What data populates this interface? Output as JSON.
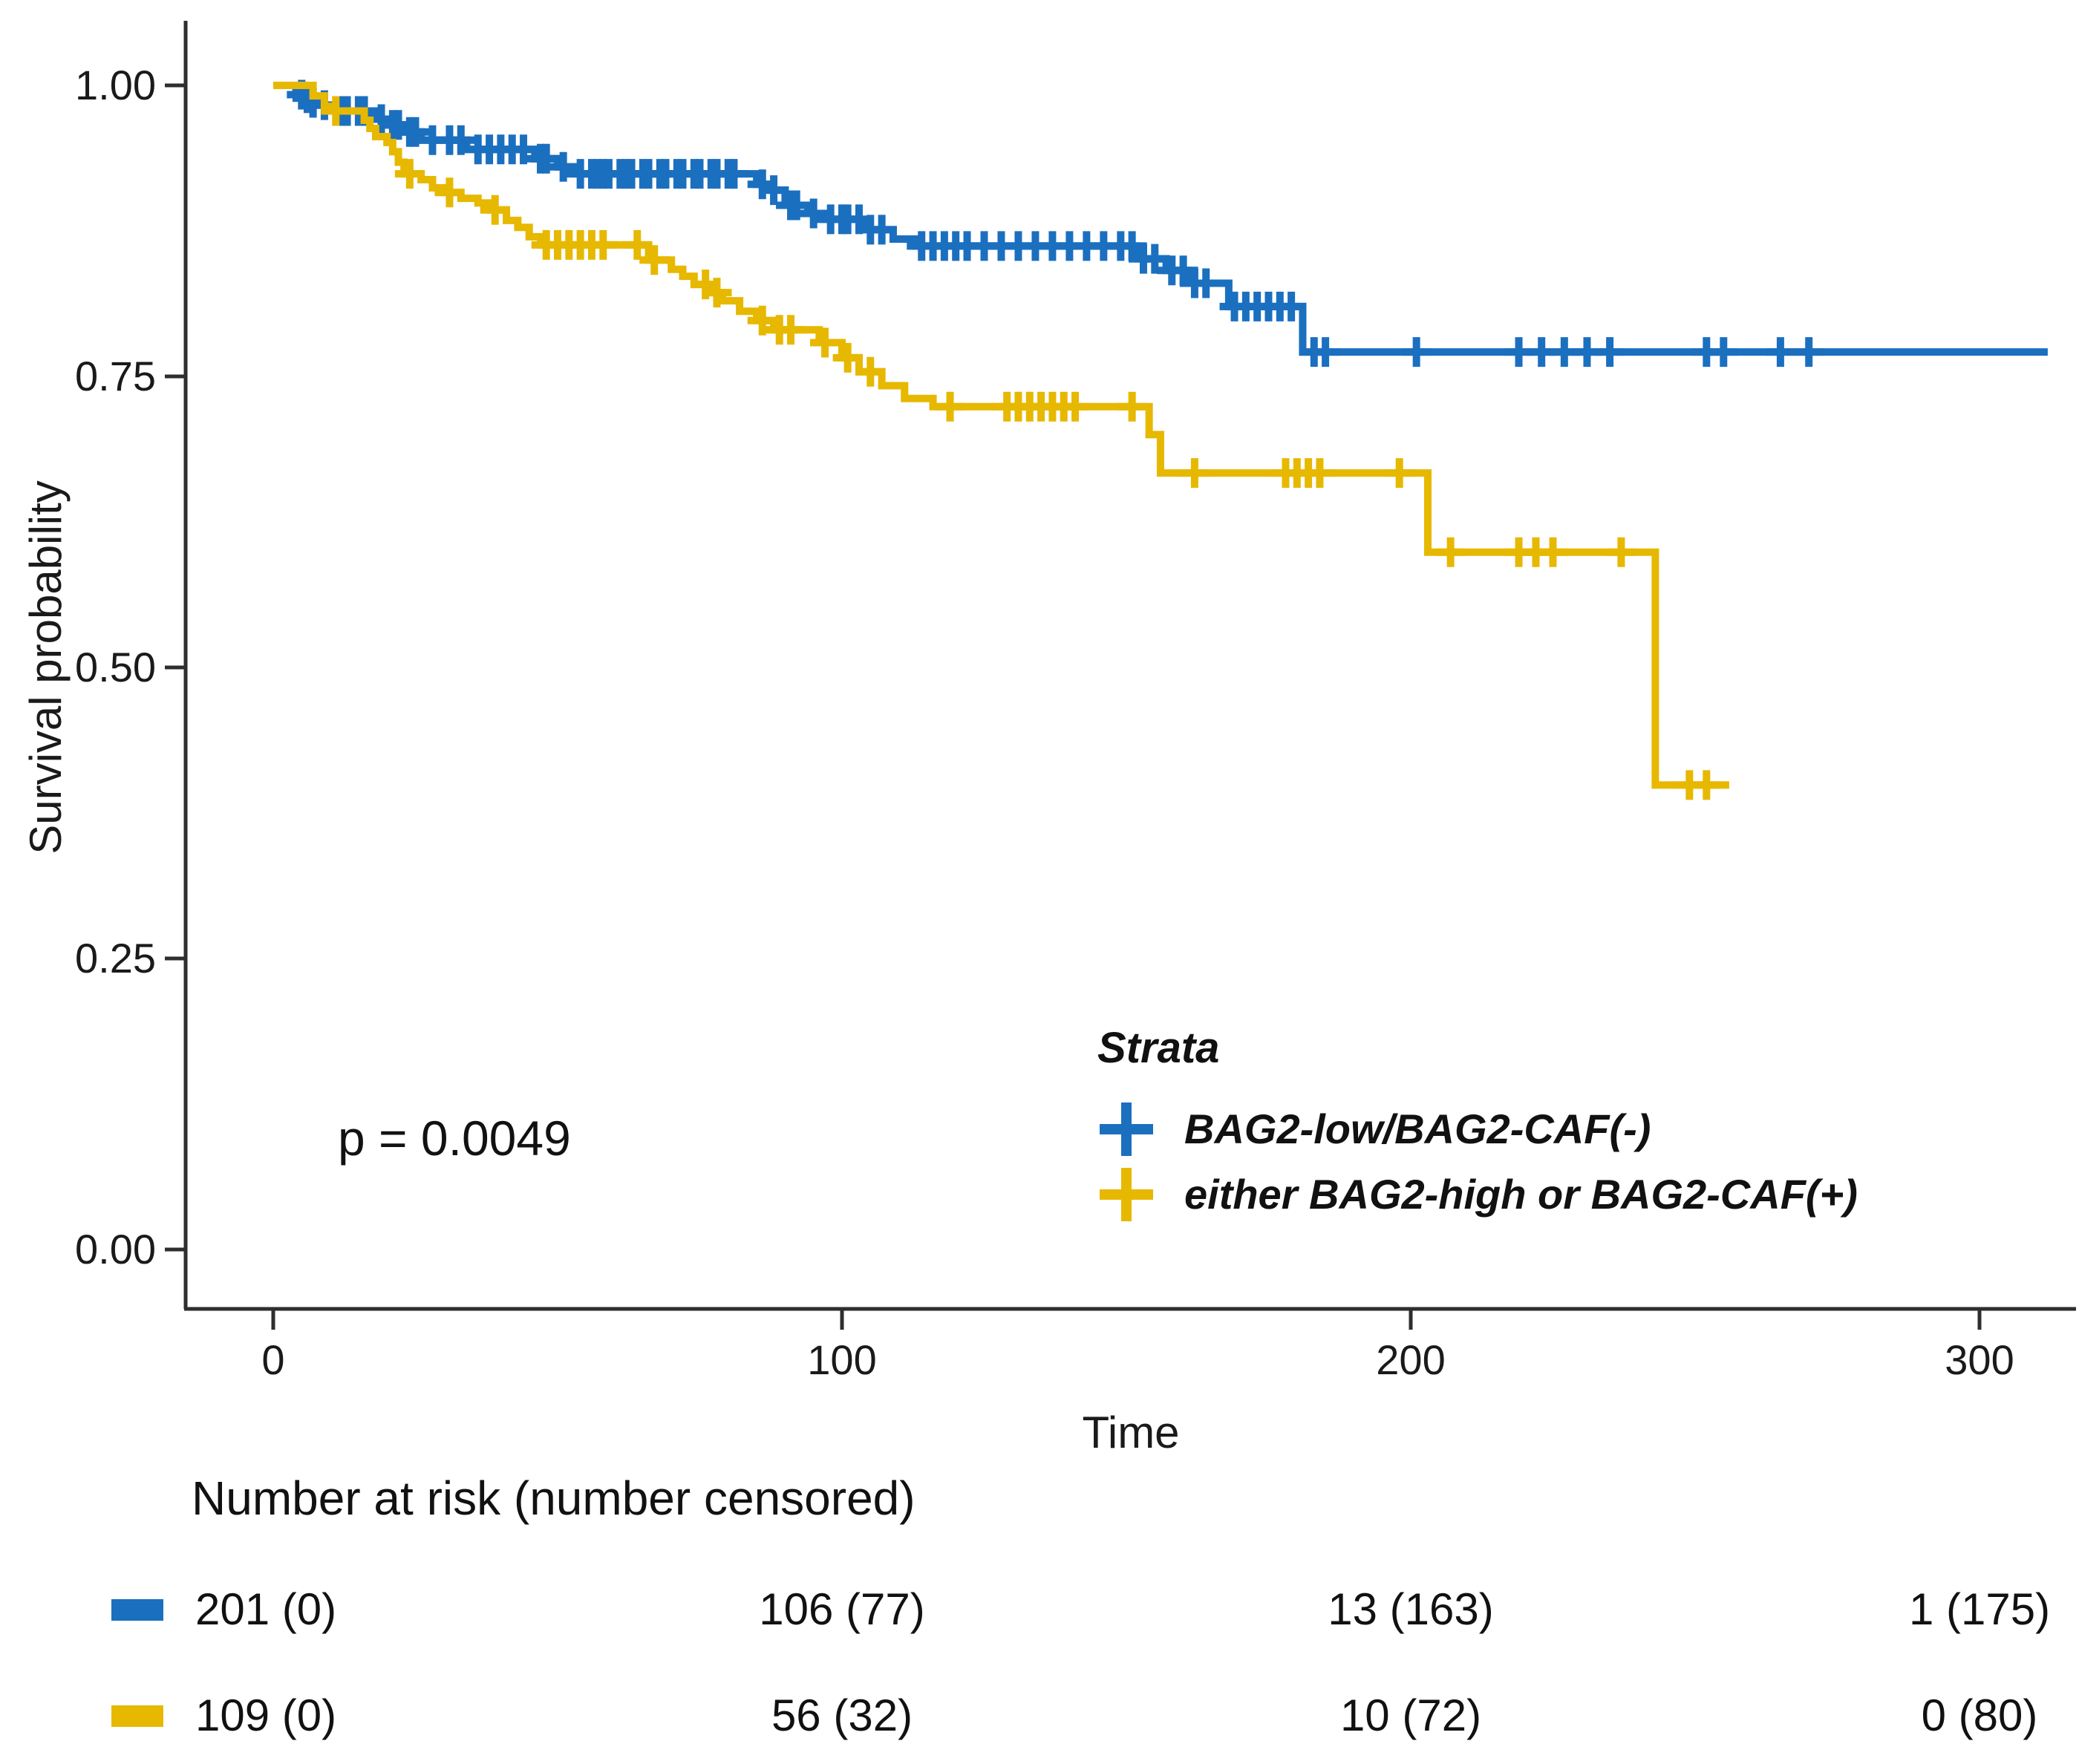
{
  "chart_data": {
    "type": "line",
    "subtype": "kaplan-meier-step",
    "title": "",
    "xlabel": "Time",
    "ylabel": "Survival probability",
    "x_ticks": [
      "0",
      "100",
      "200",
      "300"
    ],
    "x_tick_values": [
      0,
      100,
      200,
      300
    ],
    "y_ticks": [
      "1.00",
      "0.75",
      "0.50",
      "0.25",
      "0.00"
    ],
    "y_tick_values": [
      1.0,
      0.75,
      0.5,
      0.25,
      0.0
    ],
    "xlim": [
      0,
      316
    ],
    "ylim": [
      0,
      1
    ],
    "grid": false,
    "pvalue_label": "p = 0.0049",
    "legend": {
      "title": "Strata",
      "position": "inside-bottom-right"
    },
    "series": [
      {
        "name": "BAG2-low/BAG2-CAF(-)",
        "color": "#1B6FBF",
        "end_time": 312,
        "steps": [
          [
            0,
            1.0
          ],
          [
            4,
            0.996
          ],
          [
            5,
            0.992
          ],
          [
            6,
            0.989
          ],
          [
            7,
            0.985
          ],
          [
            8,
            0.983
          ],
          [
            10,
            0.98
          ],
          [
            11,
            0.978
          ],
          [
            17,
            0.973
          ],
          [
            18,
            0.971
          ],
          [
            20,
            0.966
          ],
          [
            23,
            0.96
          ],
          [
            26,
            0.953
          ],
          [
            34,
            0.945
          ],
          [
            46,
            0.937
          ],
          [
            50,
            0.93
          ],
          [
            53,
            0.924
          ],
          [
            85,
            0.915
          ],
          [
            87,
            0.91
          ],
          [
            90,
            0.897
          ],
          [
            94,
            0.89
          ],
          [
            97,
            0.885
          ],
          [
            104,
            0.876
          ],
          [
            109,
            0.868
          ],
          [
            113,
            0.862
          ],
          [
            152,
            0.851
          ],
          [
            157,
            0.841
          ],
          [
            161,
            0.83
          ],
          [
            168,
            0.81
          ],
          [
            181,
            0.771
          ]
        ],
        "censor_times": [
          5,
          6,
          7,
          9,
          12,
          13,
          15,
          16,
          19,
          21,
          22,
          24,
          25,
          28,
          31,
          33,
          36,
          38,
          40,
          42,
          44,
          47,
          48,
          51,
          54,
          56,
          57,
          58,
          59,
          61,
          62,
          63,
          65,
          66,
          68,
          69,
          71,
          72,
          74,
          75,
          77,
          78,
          80,
          81,
          86,
          88,
          91,
          92,
          95,
          98,
          100,
          101,
          103,
          105,
          107,
          114,
          116,
          118,
          120,
          122,
          125,
          128,
          131,
          134,
          137,
          140,
          143,
          146,
          149,
          151,
          153,
          155,
          158,
          160,
          162,
          164,
          169,
          171,
          173,
          175,
          177,
          179,
          183,
          185,
          201,
          219,
          223,
          227,
          231,
          235,
          252,
          255,
          265,
          270
        ]
      },
      {
        "name": "either BAG2-high or BAG2-CAF(+)",
        "color": "#E7B800",
        "end_time": 256,
        "steps": [
          [
            0,
            1.0
          ],
          [
            7,
            0.991
          ],
          [
            9,
            0.982
          ],
          [
            10,
            0.978
          ],
          [
            16,
            0.97
          ],
          [
            17,
            0.963
          ],
          [
            18,
            0.956
          ],
          [
            20,
            0.951
          ],
          [
            21,
            0.943
          ],
          [
            22,
            0.934
          ],
          [
            23,
            0.924
          ],
          [
            26,
            0.919
          ],
          [
            28,
            0.912
          ],
          [
            30,
            0.908
          ],
          [
            33,
            0.903
          ],
          [
            36,
            0.899
          ],
          [
            38,
            0.893
          ],
          [
            41,
            0.884
          ],
          [
            43,
            0.878
          ],
          [
            45,
            0.87
          ],
          [
            47,
            0.863
          ],
          [
            66,
            0.85
          ],
          [
            70,
            0.842
          ],
          [
            72,
            0.836
          ],
          [
            74,
            0.829
          ],
          [
            77,
            0.822
          ],
          [
            79,
            0.815
          ],
          [
            82,
            0.806
          ],
          [
            85,
            0.798
          ],
          [
            88,
            0.79
          ],
          [
            96,
            0.779
          ],
          [
            100,
            0.766
          ],
          [
            103,
            0.754
          ],
          [
            107,
            0.742
          ],
          [
            111,
            0.731
          ],
          [
            116,
            0.724
          ],
          [
            154,
            0.7
          ],
          [
            156,
            0.667
          ],
          [
            203,
            0.599
          ],
          [
            243,
            0.399
          ]
        ],
        "censor_times": [
          11,
          24,
          31,
          39,
          48,
          50,
          52,
          54,
          56,
          58,
          64,
          67,
          76,
          78,
          86,
          89,
          91,
          97,
          101,
          105,
          119,
          129,
          131,
          133,
          135,
          137,
          139,
          141,
          151,
          162,
          178,
          180,
          182,
          184,
          198,
          207,
          219,
          222,
          225,
          237,
          249,
          252
        ]
      }
    ],
    "risk_table": {
      "title": "Number at risk (number censored)",
      "times": [
        0,
        100,
        200,
        300
      ],
      "rows": [
        {
          "name": "BAG2-low/BAG2-CAF(-)",
          "color": "#1B6FBF",
          "values": [
            "201 (0)",
            "106 (77)",
            "13 (163)",
            "1 (175)"
          ]
        },
        {
          "name": "either BAG2-high or BAG2-CAF(+)",
          "color": "#E7B800",
          "values": [
            "109 (0)",
            "56 (32)",
            "10 (72)",
            "0 (80)"
          ]
        }
      ]
    }
  }
}
